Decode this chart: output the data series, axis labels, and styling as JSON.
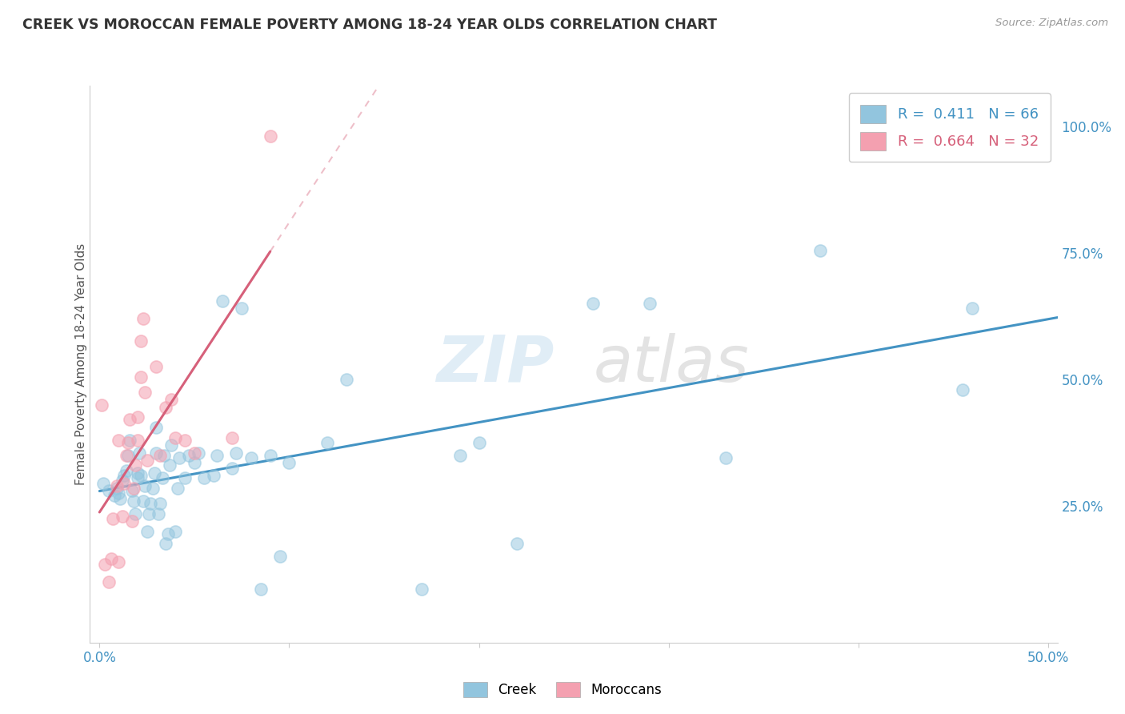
{
  "title": "CREEK VS MOROCCAN FEMALE POVERTY AMONG 18-24 YEAR OLDS CORRELATION CHART",
  "source": "Source: ZipAtlas.com",
  "ylabel": "Female Poverty Among 18-24 Year Olds",
  "xlim": [
    -0.005,
    0.505
  ],
  "ylim": [
    -0.02,
    1.08
  ],
  "xticks": [
    0.0,
    0.1,
    0.2,
    0.3,
    0.4,
    0.5
  ],
  "xticklabels": [
    "0.0%",
    "",
    "",
    "",
    "",
    "50.0%"
  ],
  "yticks_right": [
    0.0,
    0.25,
    0.5,
    0.75,
    1.0
  ],
  "yticklabels_right": [
    "",
    "25.0%",
    "50.0%",
    "75.0%",
    "100.0%"
  ],
  "creek_color": "#92c5de",
  "moroccan_color": "#f4a0b0",
  "creek_line_color": "#4393c3",
  "moroccan_line_color": "#d6607a",
  "background_color": "#ffffff",
  "grid_color": "#dddddd",
  "R_creek": 0.411,
  "N_creek": 66,
  "R_moroccan": 0.664,
  "N_moroccan": 32,
  "watermark_zip": "ZIP",
  "watermark_atlas": "atlas",
  "creek_x": [
    0.002,
    0.005,
    0.008,
    0.009,
    0.01,
    0.011,
    0.012,
    0.013,
    0.014,
    0.015,
    0.016,
    0.017,
    0.018,
    0.019,
    0.02,
    0.02,
    0.021,
    0.022,
    0.023,
    0.024,
    0.025,
    0.026,
    0.027,
    0.028,
    0.029,
    0.03,
    0.03,
    0.031,
    0.032,
    0.033,
    0.034,
    0.035,
    0.036,
    0.037,
    0.038,
    0.04,
    0.041,
    0.042,
    0.045,
    0.047,
    0.05,
    0.052,
    0.055,
    0.06,
    0.062,
    0.065,
    0.07,
    0.072,
    0.075,
    0.08,
    0.085,
    0.09,
    0.095,
    0.1,
    0.12,
    0.13,
    0.17,
    0.19,
    0.2,
    0.22,
    0.26,
    0.29,
    0.33,
    0.38,
    0.455,
    0.46
  ],
  "creek_y": [
    0.295,
    0.28,
    0.27,
    0.285,
    0.275,
    0.265,
    0.3,
    0.31,
    0.32,
    0.35,
    0.38,
    0.28,
    0.26,
    0.235,
    0.305,
    0.315,
    0.355,
    0.31,
    0.26,
    0.29,
    0.2,
    0.235,
    0.255,
    0.285,
    0.315,
    0.355,
    0.405,
    0.235,
    0.255,
    0.305,
    0.35,
    0.175,
    0.195,
    0.33,
    0.37,
    0.2,
    0.285,
    0.345,
    0.305,
    0.35,
    0.335,
    0.355,
    0.305,
    0.31,
    0.35,
    0.655,
    0.325,
    0.355,
    0.64,
    0.345,
    0.085,
    0.35,
    0.15,
    0.335,
    0.375,
    0.5,
    0.085,
    0.35,
    0.375,
    0.175,
    0.65,
    0.65,
    0.345,
    0.755,
    0.48,
    0.64
  ],
  "moroccan_x": [
    0.001,
    0.003,
    0.005,
    0.006,
    0.007,
    0.009,
    0.01,
    0.01,
    0.012,
    0.013,
    0.014,
    0.015,
    0.016,
    0.017,
    0.018,
    0.019,
    0.02,
    0.02,
    0.022,
    0.022,
    0.023,
    0.024,
    0.025,
    0.03,
    0.032,
    0.035,
    0.038,
    0.04,
    0.045,
    0.05,
    0.07,
    0.09
  ],
  "moroccan_y": [
    0.45,
    0.135,
    0.1,
    0.145,
    0.225,
    0.29,
    0.38,
    0.14,
    0.23,
    0.295,
    0.35,
    0.375,
    0.42,
    0.22,
    0.285,
    0.33,
    0.425,
    0.38,
    0.505,
    0.575,
    0.62,
    0.475,
    0.34,
    0.525,
    0.35,
    0.445,
    0.46,
    0.385,
    0.38,
    0.355,
    0.385,
    0.98
  ]
}
